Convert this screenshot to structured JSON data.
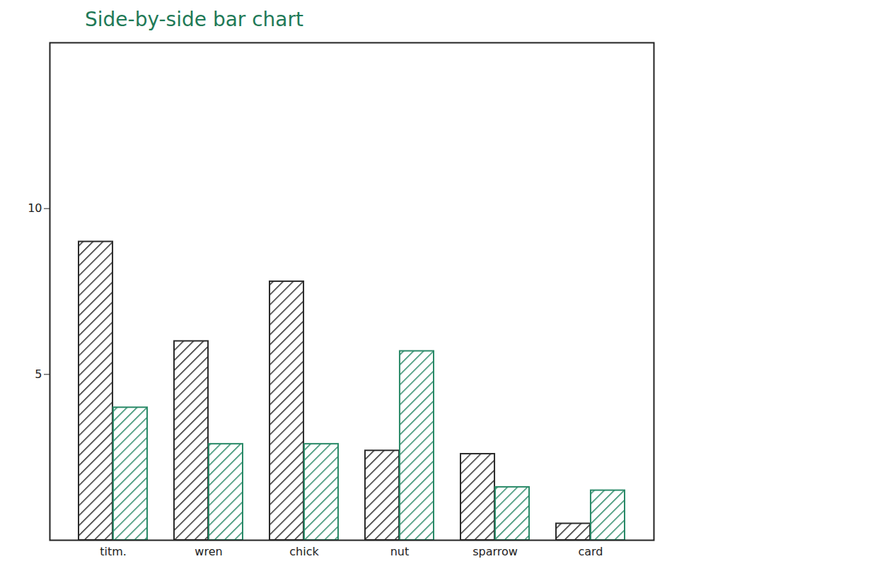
{
  "chart_data": {
    "type": "bar",
    "title": "Side-by-side bar chart",
    "categories": [
      "titm.",
      "wren",
      "chick",
      "nut",
      "sparrow",
      "card"
    ],
    "series": [
      {
        "color": "#2b2b2b",
        "values": [
          9.0,
          6.0,
          7.8,
          2.7,
          2.6,
          0.5
        ]
      },
      {
        "color": "#2a8a68",
        "values": [
          4.0,
          2.9,
          2.9,
          5.7,
          1.6,
          1.5
        ]
      }
    ],
    "ylim": [
      0,
      15
    ],
    "yticks": [
      5,
      10
    ]
  }
}
